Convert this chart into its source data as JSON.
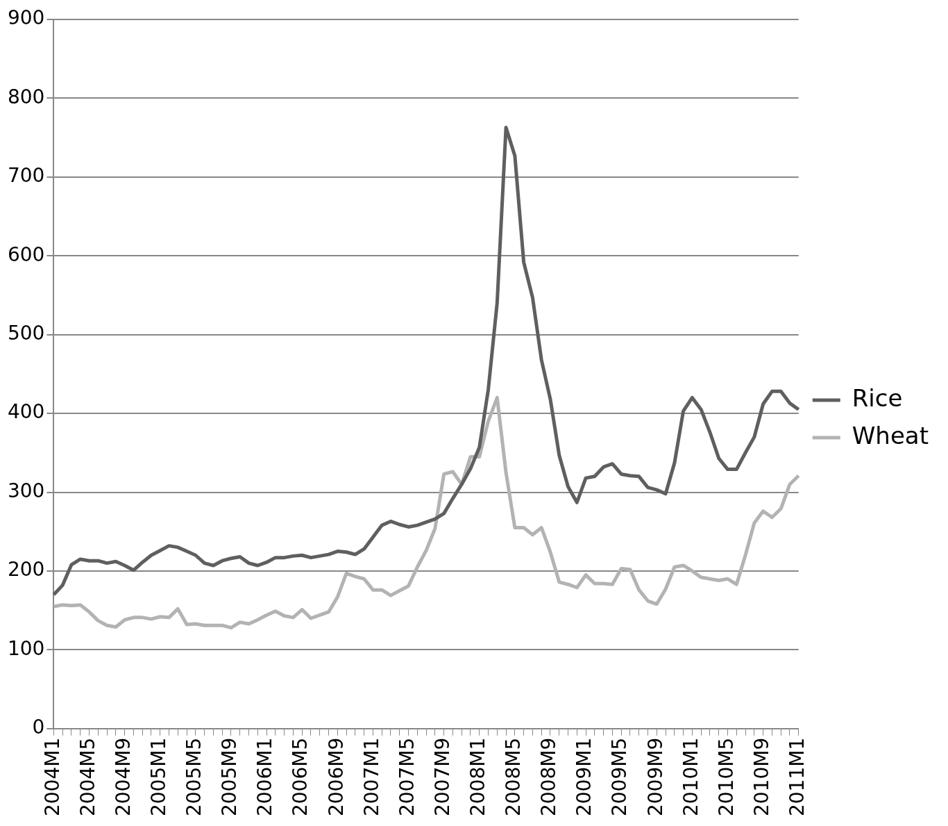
{
  "chart_data": {
    "type": "line",
    "categories": [
      "2004M1",
      null,
      null,
      null,
      "2004M5",
      null,
      null,
      null,
      "2004M9",
      null,
      null,
      null,
      "2005M1",
      null,
      null,
      null,
      "2005M5",
      null,
      null,
      null,
      "2005M9",
      null,
      null,
      null,
      "2006M1",
      null,
      null,
      null,
      "2006M5",
      null,
      null,
      null,
      "2006M9",
      null,
      null,
      null,
      "2007M1",
      null,
      null,
      null,
      "2007M5",
      null,
      null,
      null,
      "2007M9",
      null,
      null,
      null,
      "2008M1",
      null,
      null,
      null,
      "2008M5",
      null,
      null,
      null,
      "2008M9",
      null,
      null,
      null,
      "2009M1",
      null,
      null,
      null,
      "2009M5",
      null,
      null,
      null,
      "2009M9",
      null,
      null,
      null,
      "2010M1",
      null,
      null,
      null,
      "2010M5",
      null,
      null,
      null,
      "2010M9",
      null,
      null,
      null,
      "2011M1"
    ],
    "series": [
      {
        "name": "Rice",
        "color": "#5f5f5f",
        "values": [
          170,
          182,
          208,
          215,
          213,
          213,
          210,
          212,
          207,
          201,
          211,
          220,
          226,
          232,
          230,
          225,
          220,
          210,
          207,
          213,
          216,
          218,
          210,
          207,
          211,
          217,
          217,
          219,
          220,
          217,
          219,
          221,
          225,
          224,
          221,
          228,
          243,
          258,
          263,
          259,
          256,
          258,
          262,
          266,
          273,
          292,
          310,
          330,
          357,
          430,
          540,
          763,
          727,
          592,
          547,
          468,
          418,
          347,
          307,
          287,
          318,
          320,
          332,
          336,
          323,
          321,
          320,
          306,
          303,
          298,
          337,
          403,
          420,
          405,
          376,
          343,
          329,
          329,
          350,
          370,
          412,
          428,
          428,
          413,
          405
        ]
      },
      {
        "name": "Wheat",
        "color": "#b3b3b3",
        "values": [
          155,
          157,
          156,
          157,
          148,
          137,
          131,
          129,
          138,
          141,
          141,
          139,
          142,
          141,
          152,
          132,
          133,
          131,
          131,
          131,
          128,
          135,
          133,
          138,
          144,
          149,
          143,
          141,
          151,
          140,
          144,
          148,
          167,
          197,
          193,
          190,
          176,
          176,
          169,
          175,
          181,
          205,
          226,
          254,
          323,
          326,
          310,
          345,
          345,
          390,
          420,
          325,
          255,
          255,
          246,
          255,
          224,
          186,
          183,
          179,
          195,
          184,
          184,
          183,
          203,
          202,
          176,
          162,
          158,
          177,
          205,
          207,
          200,
          192,
          190,
          188,
          190,
          183,
          220,
          261,
          276,
          268,
          279,
          310,
          321
        ]
      }
    ],
    "ylim": [
      0,
      900
    ],
    "yticks": [
      0,
      100,
      200,
      300,
      400,
      500,
      600,
      700,
      800,
      900
    ],
    "grid": "y",
    "legend": "right",
    "marker": "none",
    "line_style": "solid"
  }
}
